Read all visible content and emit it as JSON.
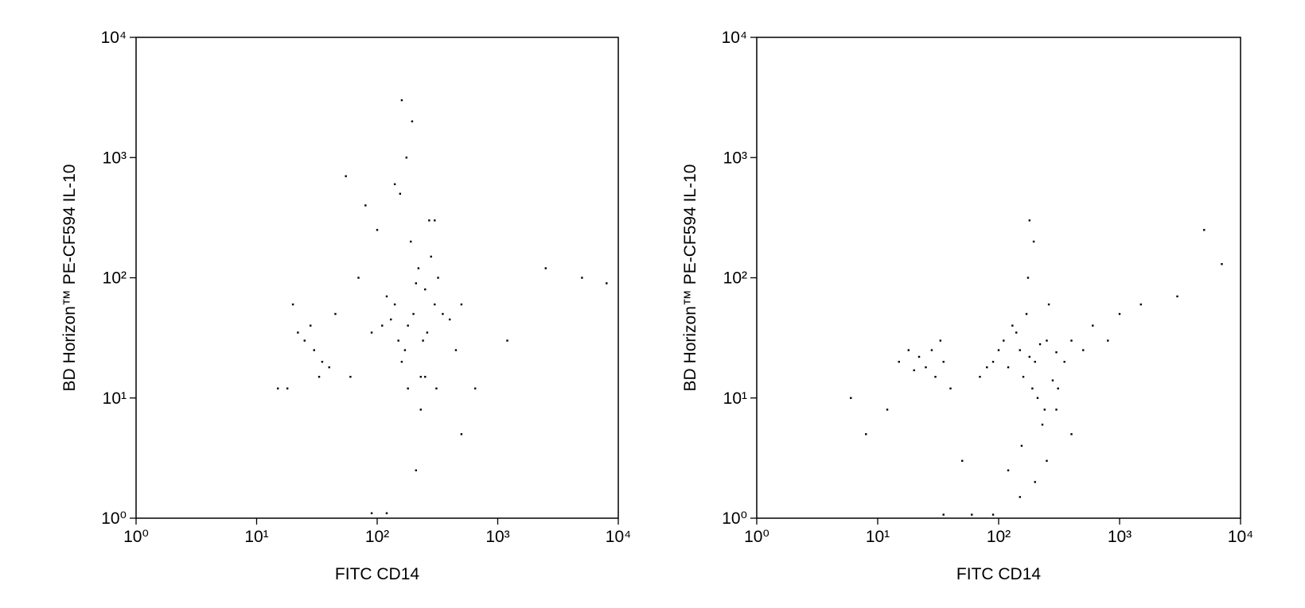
{
  "chart_data": [
    {
      "type": "scatter",
      "xlabel": "FITC CD14",
      "ylabel": "BD Horizon™ PE-CF594 IL-10",
      "log_scale": true,
      "color": "#000000",
      "xlim": [
        1,
        10000
      ],
      "ylim": [
        1,
        10000
      ],
      "xticks": [
        {
          "value": 1,
          "label": "10⁰"
        },
        {
          "value": 10,
          "label": "10¹"
        },
        {
          "value": 100,
          "label": "10²"
        },
        {
          "value": 1000,
          "label": "10³"
        },
        {
          "value": 10000,
          "label": "10⁴"
        }
      ],
      "yticks": [
        {
          "value": 1,
          "label": "10⁰"
        },
        {
          "value": 10,
          "label": "10¹"
        },
        {
          "value": 100,
          "label": "10²"
        },
        {
          "value": 1000,
          "label": "10³"
        },
        {
          "value": 10000,
          "label": "10⁴"
        }
      ],
      "x": [
        200,
        180,
        250,
        150,
        300,
        220,
        170,
        130,
        260,
        190,
        120,
        350,
        280,
        160,
        210,
        240,
        140,
        320,
        110,
        400,
        90,
        450,
        230,
        270,
        175,
        195,
        155,
        310,
        500,
        100,
        30,
        25,
        35,
        28,
        40,
        22,
        33,
        45,
        20,
        18,
        60,
        70,
        80,
        55,
        500,
        650,
        1200,
        2500,
        5000,
        8000,
        160,
        230,
        180,
        210,
        140,
        300,
        250,
        120,
        90,
        15
      ],
      "values": [
        50,
        40,
        80,
        30,
        60,
        120,
        25,
        45,
        35,
        200,
        70,
        50,
        150,
        20,
        90,
        30,
        60,
        100,
        40,
        45,
        35,
        25,
        15,
        300,
        1000,
        2000,
        500,
        12,
        60,
        250,
        25,
        30,
        20,
        40,
        18,
        35,
        15,
        50,
        60,
        12,
        15,
        100,
        400,
        700,
        5,
        12,
        30,
        120,
        100,
        90,
        3000,
        8,
        12,
        2.5,
        600,
        300,
        15,
        1.1,
        1.1,
        12
      ]
    },
    {
      "type": "scatter",
      "xlabel": "FITC CD14",
      "ylabel": "BD Horizon™ PE-CF594 IL-10",
      "log_scale": true,
      "color": "#000000",
      "xlim": [
        1,
        10000
      ],
      "ylim": [
        1,
        10000
      ],
      "xticks": [
        {
          "value": 1,
          "label": "10⁰"
        },
        {
          "value": 10,
          "label": "10¹"
        },
        {
          "value": 100,
          "label": "10²"
        },
        {
          "value": 1000,
          "label": "10³"
        },
        {
          "value": 10000,
          "label": "10⁴"
        }
      ],
      "yticks": [
        {
          "value": 1,
          "label": "10⁰"
        },
        {
          "value": 10,
          "label": "10¹"
        },
        {
          "value": 100,
          "label": "10²"
        },
        {
          "value": 1000,
          "label": "10³"
        },
        {
          "value": 10000,
          "label": "10⁴"
        }
      ],
      "x": [
        180,
        150,
        200,
        250,
        120,
        220,
        160,
        300,
        140,
        190,
        100,
        350,
        130,
        210,
        170,
        240,
        110,
        280,
        90,
        400,
        80,
        500,
        230,
        260,
        175,
        195,
        155,
        310,
        600,
        70,
        25,
        22,
        30,
        28,
        35,
        20,
        33,
        40,
        18,
        15,
        50,
        8,
        6,
        12,
        1000,
        1500,
        3000,
        5000,
        7000,
        800,
        150,
        200,
        250,
        120,
        300,
        180,
        400,
        60,
        90,
        35
      ],
      "values": [
        22,
        25,
        20,
        30,
        18,
        28,
        15,
        24,
        35,
        12,
        25,
        20,
        40,
        10,
        50,
        8,
        30,
        14,
        20,
        30,
        18,
        25,
        6,
        60,
        100,
        200,
        4,
        12,
        40,
        15,
        18,
        22,
        15,
        25,
        20,
        17,
        30,
        12,
        25,
        20,
        3,
        5,
        10,
        8,
        50,
        60,
        70,
        250,
        130,
        30,
        1.5,
        2,
        3,
        2.5,
        8,
        300,
        5,
        1.07,
        1.07,
        1.07
      ]
    }
  ]
}
